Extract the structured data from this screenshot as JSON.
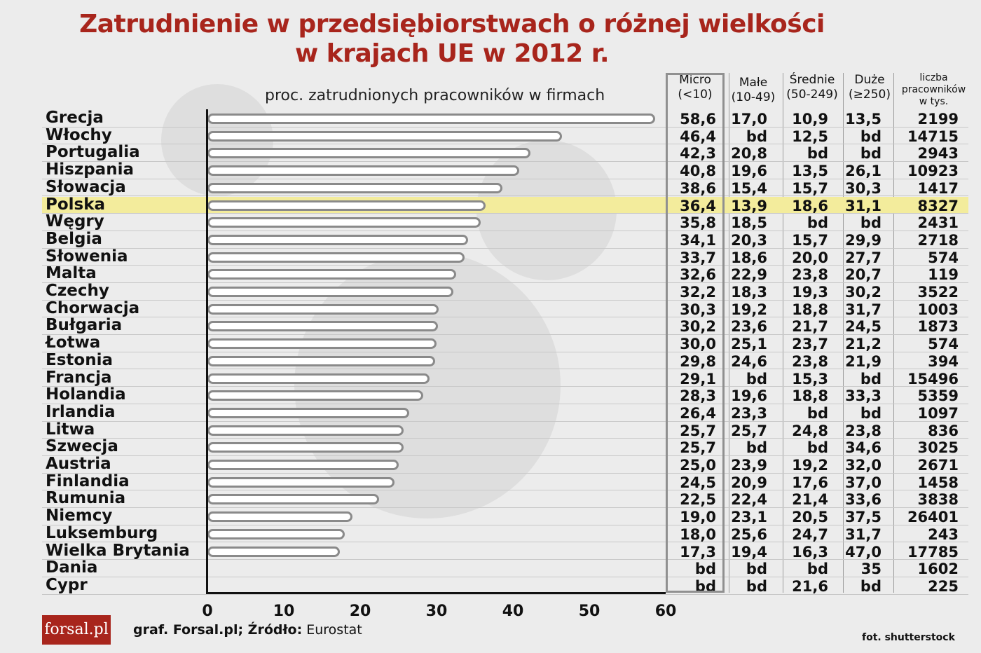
{
  "title_line1": "Zatrudnienie w przedsiębiorstwach o różnej wielkości",
  "title_line2": "w krajach UE w 2012 r.",
  "subtitle": "proc. zatrudnionych pracowników w firmach",
  "headers": {
    "micro_1": "Micro",
    "micro_2": "(<10)",
    "male_1": "Małe",
    "male_2": "(10-49)",
    "sred_1": "Średnie",
    "sred_2": "(50-249)",
    "duze_1": "Duże",
    "duze_2": "(≥250)",
    "liczba_1": "liczba",
    "liczba_2": "pracowników",
    "liczba_3": "w tys."
  },
  "highlight_color": "#f3ec9c",
  "title_color": "#a8251c",
  "chart_data": {
    "type": "bar",
    "orientation": "horizontal",
    "xlim": [
      0,
      60
    ],
    "ticks": [
      "0",
      "10",
      "20",
      "30",
      "40",
      "50",
      "60"
    ],
    "highlighted": "Polska",
    "rows": [
      {
        "country": "Grecja",
        "micro": "58,6",
        "male": "17,0",
        "sred": "10,9",
        "duze": "13,5",
        "liczba": "2199",
        "value": 58.6
      },
      {
        "country": "Włochy",
        "micro": "46,4",
        "male": "bd",
        "sred": "12,5",
        "duze": "bd",
        "liczba": "14715",
        "value": 46.4
      },
      {
        "country": "Portugalia",
        "micro": "42,3",
        "male": "20,8",
        "sred": "bd",
        "duze": "bd",
        "liczba": "2943",
        "value": 42.3
      },
      {
        "country": "Hiszpania",
        "micro": "40,8",
        "male": "19,6",
        "sred": "13,5",
        "duze": "26,1",
        "liczba": "10923",
        "value": 40.8
      },
      {
        "country": "Słowacja",
        "micro": "38,6",
        "male": "15,4",
        "sred": "15,7",
        "duze": "30,3",
        "liczba": "1417",
        "value": 38.6
      },
      {
        "country": "Polska",
        "micro": "36,4",
        "male": "13,9",
        "sred": "18,6",
        "duze": "31,1",
        "liczba": "8327",
        "value": 36.4
      },
      {
        "country": "Węgry",
        "micro": "35,8",
        "male": "18,5",
        "sred": "bd",
        "duze": "bd",
        "liczba": "2431",
        "value": 35.8
      },
      {
        "country": "Belgia",
        "micro": "34,1",
        "male": "20,3",
        "sred": "15,7",
        "duze": "29,9",
        "liczba": "2718",
        "value": 34.1
      },
      {
        "country": "Słowenia",
        "micro": "33,7",
        "male": "18,6",
        "sred": "20,0",
        "duze": "27,7",
        "liczba": "574",
        "value": 33.7
      },
      {
        "country": "Malta",
        "micro": "32,6",
        "male": "22,9",
        "sred": "23,8",
        "duze": "20,7",
        "liczba": "119",
        "value": 32.6
      },
      {
        "country": "Czechy",
        "micro": "32,2",
        "male": "18,3",
        "sred": "19,3",
        "duze": "30,2",
        "liczba": "3522",
        "value": 32.2
      },
      {
        "country": "Chorwacja",
        "micro": "30,3",
        "male": "19,2",
        "sred": "18,8",
        "duze": "31,7",
        "liczba": "1003",
        "value": 30.3
      },
      {
        "country": "Bułgaria",
        "micro": "30,2",
        "male": "23,6",
        "sred": "21,7",
        "duze": "24,5",
        "liczba": "1873",
        "value": 30.2
      },
      {
        "country": "Łotwa",
        "micro": "30,0",
        "male": "25,1",
        "sred": "23,7",
        "duze": "21,2",
        "liczba": "574",
        "value": 30.0
      },
      {
        "country": "Estonia",
        "micro": "29,8",
        "male": "24,6",
        "sred": "23,8",
        "duze": "21,9",
        "liczba": "394",
        "value": 29.8
      },
      {
        "country": "Francja",
        "micro": "29,1",
        "male": "bd",
        "sred": "15,3",
        "duze": "bd",
        "liczba": "15496",
        "value": 29.1
      },
      {
        "country": "Holandia",
        "micro": "28,3",
        "male": "19,6",
        "sred": "18,8",
        "duze": "33,3",
        "liczba": "5359",
        "value": 28.3
      },
      {
        "country": "Irlandia",
        "micro": "26,4",
        "male": "23,3",
        "sred": "bd",
        "duze": "bd",
        "liczba": "1097",
        "value": 26.4
      },
      {
        "country": "Litwa",
        "micro": "25,7",
        "male": "25,7",
        "sred": "24,8",
        "duze": "23,8",
        "liczba": "836",
        "value": 25.7
      },
      {
        "country": "Szwecja",
        "micro": "25,7",
        "male": "bd",
        "sred": "bd",
        "duze": "34,6",
        "liczba": "3025",
        "value": 25.7
      },
      {
        "country": "Austria",
        "micro": "25,0",
        "male": "23,9",
        "sred": "19,2",
        "duze": "32,0",
        "liczba": "2671",
        "value": 25.0
      },
      {
        "country": "Finlandia",
        "micro": "24,5",
        "male": "20,9",
        "sred": "17,6",
        "duze": "37,0",
        "liczba": "1458",
        "value": 24.5
      },
      {
        "country": "Rumunia",
        "micro": "22,5",
        "male": "22,4",
        "sred": "21,4",
        "duze": "33,6",
        "liczba": "3838",
        "value": 22.5
      },
      {
        "country": "Niemcy",
        "micro": "19,0",
        "male": "23,1",
        "sred": "20,5",
        "duze": "37,5",
        "liczba": "26401",
        "value": 19.0
      },
      {
        "country": "Luksemburg",
        "micro": "18,0",
        "male": "25,6",
        "sred": "24,7",
        "duze": "31,7",
        "liczba": "243",
        "value": 18.0
      },
      {
        "country": "Wielka Brytania",
        "micro": "17,3",
        "male": "19,4",
        "sred": "16,3",
        "duze": "47,0",
        "liczba": "17785",
        "value": 17.3
      },
      {
        "country": "Dania",
        "micro": "bd",
        "male": "bd",
        "sred": "bd",
        "duze": "35",
        "liczba": "1602",
        "value": null
      },
      {
        "country": "Cypr",
        "micro": "bd",
        "male": "bd",
        "sred": "21,6",
        "duze": "bd",
        "liczba": "225",
        "value": null
      }
    ]
  },
  "footer": {
    "logo": "forsal.pl",
    "source_bold": "graf. Forsal.pl; Źródło:",
    "source_rest": " Eurostat",
    "photo": "fot. shutterstock"
  }
}
